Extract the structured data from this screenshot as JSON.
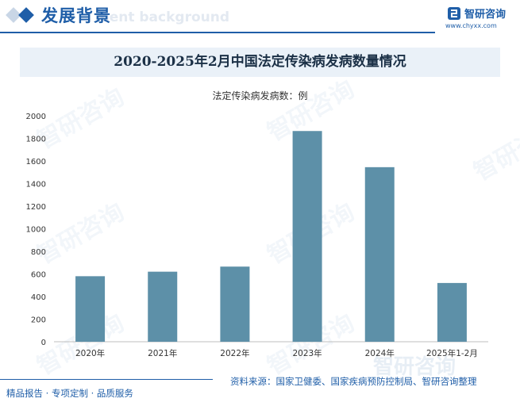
{
  "header": {
    "section_title": "发展背景",
    "section_subtitle": "ment background",
    "brand_name": "智研咨询",
    "brand_url": "www.chyxx.com"
  },
  "watermark": {
    "text": "智研咨询"
  },
  "footer": {
    "source": "资料来源：国家卫健委、国家疾病预防控制局、智研咨询整理",
    "slogan": "精品报告 · 专项定制 · 品质服务",
    "brand": "智研咨询"
  },
  "colors": {
    "accent": "#1f5ea8",
    "bar": "#5d90a8",
    "title_band": "#eaf1f8"
  },
  "chart_data": {
    "type": "bar",
    "title": "2020-2025年2月中国法定传染病发病数量情况",
    "unit_label": "法定传染病发病数：例",
    "categories": [
      "2020年",
      "2021年",
      "2022年",
      "2023年",
      "2024年",
      "2025年1-2月"
    ],
    "values": [
      580,
      620,
      665,
      1865,
      1545,
      520
    ],
    "ylim": [
      0,
      2000
    ],
    "yticks": [
      0,
      200,
      400,
      600,
      800,
      1000,
      1200,
      1400,
      1600,
      1800,
      2000
    ],
    "grid": false,
    "legend": "none"
  }
}
